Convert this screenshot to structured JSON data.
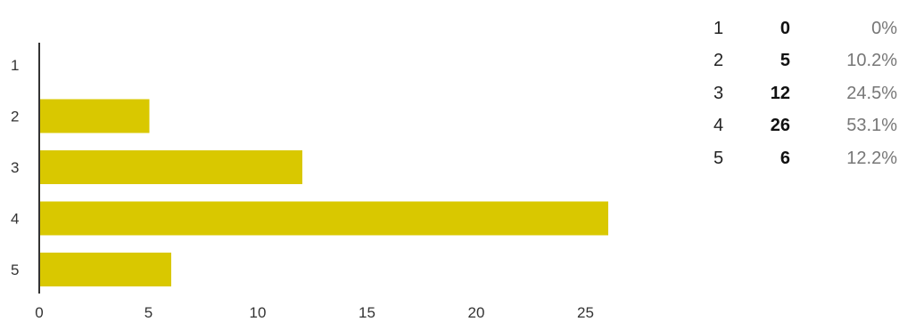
{
  "colors": {
    "bar": "#d9c800",
    "axis": "#333333"
  },
  "chart_data": {
    "type": "bar",
    "orientation": "horizontal",
    "categories": [
      "1",
      "2",
      "3",
      "4",
      "5"
    ],
    "values": [
      0,
      5,
      12,
      26,
      6
    ],
    "xlim": [
      0,
      27
    ],
    "xticks": [
      0,
      5,
      10,
      15,
      20,
      25
    ],
    "grid": false,
    "legend": "none"
  },
  "summary": [
    {
      "rating": "1",
      "count": "0",
      "percent": "0%"
    },
    {
      "rating": "2",
      "count": "5",
      "percent": "10.2%"
    },
    {
      "rating": "3",
      "count": "12",
      "percent": "24.5%"
    },
    {
      "rating": "4",
      "count": "26",
      "percent": "53.1%"
    },
    {
      "rating": "5",
      "count": "6",
      "percent": "12.2%"
    }
  ]
}
